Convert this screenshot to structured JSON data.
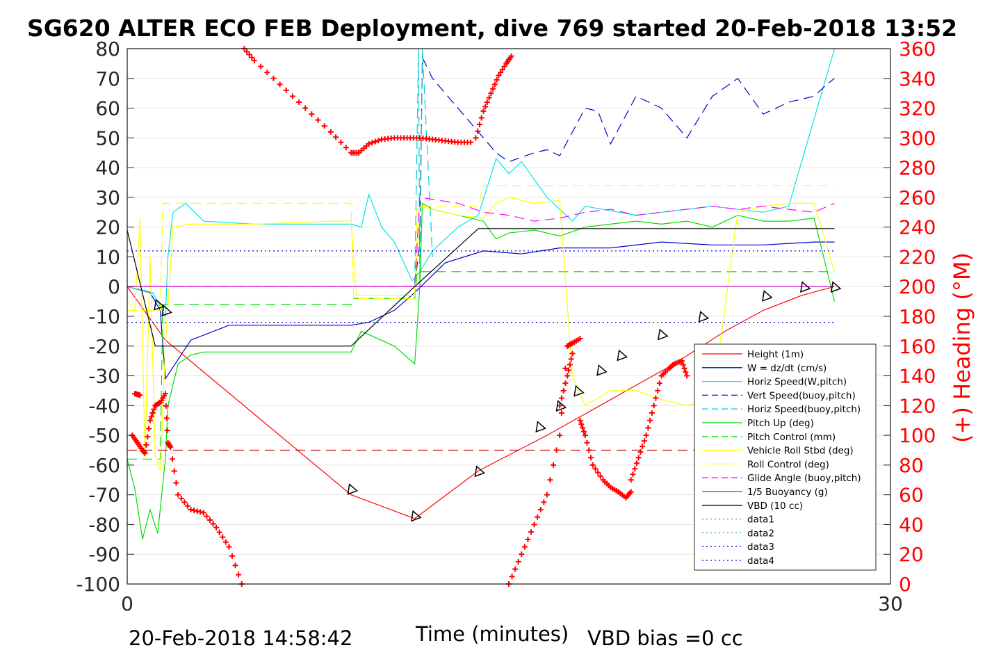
{
  "chart_data": {
    "type": "line",
    "title": "SG620 ALTER ECO FEB Deployment, dive 769 started 20-Feb-2018 13:52",
    "xlabel": "Time (minutes)",
    "ylabel": "",
    "y2label": "(+) Heading (°M)",
    "xlim": [
      0,
      30
    ],
    "ylim": [
      -100,
      80
    ],
    "y2lim": [
      0,
      360
    ],
    "x_ticks": [
      "0",
      "30"
    ],
    "y_ticks": [
      "80",
      "70",
      "60",
      "50",
      "40",
      "30",
      "20",
      "10",
      "0",
      "-10",
      "-20",
      "-30",
      "-40",
      "-50",
      "-60",
      "-70",
      "-80",
      "-90",
      "-100"
    ],
    "y2_ticks": [
      "360",
      "340",
      "320",
      "300",
      "280",
      "260",
      "240",
      "220",
      "200",
      "180",
      "160",
      "140",
      "120",
      "100",
      "80",
      "60",
      "40",
      "20",
      "0"
    ],
    "grid": true,
    "legend_position": "lower-right",
    "footer_left": "20-Feb-2018 14:58:42",
    "footer_right": "VBD bias =0 cc",
    "series": [
      {
        "name": "Height (1m)",
        "color": "#ff0000",
        "style": "solid",
        "x": [
          0,
          1.5,
          8.8,
          11.3,
          13.8,
          16.5,
          19,
          21.5,
          23.5,
          25,
          26.5,
          27.8
        ],
        "y": [
          0,
          -18,
          -70,
          -78,
          -62,
          -50,
          -38,
          -26,
          -15,
          -8,
          -3,
          0
        ]
      },
      {
        "name": "W = dz/dt (cm/s)",
        "color": "#0000cc",
        "style": "solid",
        "x": [
          0,
          0.9,
          1.3,
          1.5,
          2.5,
          4,
          6,
          8,
          8.8,
          9.5,
          10.5,
          11.3,
          12.5,
          14,
          15.5,
          17,
          19,
          21,
          23,
          25,
          27,
          27.8
        ],
        "y": [
          0,
          -2,
          -8,
          -31,
          -18,
          -13,
          -13,
          -13,
          -13,
          -12,
          -8,
          -2,
          8,
          12,
          11,
          13,
          13,
          15,
          14,
          14,
          15,
          15
        ]
      },
      {
        "name": "Horiz Speed(W,pitch)",
        "color": "#00e5e5",
        "style": "solid",
        "x": [
          0,
          1,
          1.5,
          1.6,
          1.8,
          2.3,
          3,
          5,
          7,
          8.8,
          9.2,
          9.5,
          10,
          10.5,
          11.2,
          11.5,
          12,
          13,
          13.8,
          14.5,
          15,
          15.5,
          16.5,
          17.5,
          18,
          20,
          21,
          23,
          25,
          26,
          27.8
        ],
        "y": [
          0,
          -2,
          -10,
          10,
          25,
          28,
          22,
          21,
          21,
          21,
          20,
          31,
          20,
          15,
          2,
          5,
          12,
          20,
          24,
          43,
          38,
          42,
          30,
          22,
          27,
          24,
          25,
          27,
          25,
          27,
          80
        ]
      },
      {
        "name": "Vert Speed(buoy,pitch)",
        "color": "#0000cc",
        "style": "dashed",
        "x": [
          11.3,
          11.5,
          11.6,
          12,
          13,
          14,
          14.5,
          15,
          16,
          16.5,
          17,
          18,
          18.5,
          19,
          20,
          21,
          22,
          23,
          24,
          25,
          26,
          27,
          27.5,
          27.8
        ],
        "y": [
          0,
          15,
          77,
          70,
          60,
          50,
          45,
          42,
          45,
          46,
          44,
          60,
          59,
          48,
          64,
          60,
          50,
          64,
          70,
          58,
          62,
          64,
          68,
          70
        ]
      },
      {
        "name": "Horiz Speed(buoy,pitch)",
        "color": "#00cccc",
        "style": "dashed",
        "x": [
          11.3,
          11.45,
          11.5,
          11.6,
          12
        ],
        "y": [
          0,
          80,
          0,
          80,
          10
        ]
      },
      {
        "name": "Pitch Up (deg)",
        "color": "#00dd00",
        "style": "solid",
        "x": [
          0,
          0.3,
          0.6,
          0.9,
          1.2,
          1.5,
          1.6,
          2,
          2.5,
          3,
          5,
          8,
          8.8,
          9.2,
          10.5,
          11.3,
          11.5,
          11.6,
          12,
          13,
          14,
          14.5,
          15,
          16,
          17,
          18,
          19,
          20,
          21,
          22,
          23,
          24,
          25,
          26,
          27,
          27.8
        ],
        "y": [
          -58,
          -68,
          -85,
          -75,
          -83,
          -58,
          -40,
          -26,
          -23,
          -22,
          -22,
          -22,
          -22,
          -15,
          -20,
          -26,
          0,
          28,
          26,
          24,
          22,
          16,
          18,
          19,
          17,
          20,
          21,
          22,
          21,
          22,
          20,
          24,
          22,
          22,
          23,
          -5
        ]
      },
      {
        "name": "Pitch Control (mm)",
        "color": "#00dd00",
        "style": "dashed",
        "x": [
          0,
          1.3,
          1.4,
          8.8,
          8.9,
          11.3,
          11.4,
          27.8
        ],
        "y": [
          -58,
          -58,
          -6,
          -6,
          -4,
          -4,
          5,
          5
        ]
      },
      {
        "name": "Vehicle Roll Stbd (deg)",
        "color": "#ffff00",
        "style": "solid",
        "x": [
          0,
          0.3,
          0.5,
          0.7,
          0.9,
          1.1,
          1.3,
          1.5,
          1.8,
          2.5,
          5,
          8,
          8.8,
          9,
          11.3,
          11.5,
          12,
          13,
          14,
          14.5,
          15,
          16,
          17,
          17.5,
          18,
          19,
          20,
          21,
          22,
          23,
          24,
          25,
          26,
          27,
          27.8
        ],
        "y": [
          -5,
          -8,
          23,
          -58,
          10,
          -57,
          -62,
          -20,
          20,
          21,
          21,
          22,
          22,
          -3,
          -3,
          27,
          26,
          24,
          23,
          28,
          30,
          28,
          29,
          -30,
          -40,
          -35,
          -35,
          -38,
          -40,
          -38,
          25,
          27,
          28,
          28,
          5
        ]
      },
      {
        "name": "Roll Control (deg)",
        "color": "#ffff00",
        "style": "dashed",
        "x": [
          0,
          1.3,
          1.4,
          8.8,
          8.9,
          11.3,
          11.4,
          13.8,
          14,
          27.8
        ],
        "y": [
          -8,
          -8,
          28,
          28,
          -4,
          -4,
          27,
          27,
          34,
          34
        ]
      },
      {
        "name": "Glide Angle (buoy,pitch)",
        "color": "#ff00ff",
        "style": "dashed",
        "x": [
          0,
          11.3,
          11.5,
          13,
          14,
          15,
          16,
          17,
          18,
          19,
          20,
          21,
          22,
          23,
          24,
          25,
          26,
          27,
          27.8
        ],
        "y": [
          0,
          0,
          30,
          28,
          25,
          24,
          22,
          23,
          25,
          26,
          24,
          25,
          26,
          27,
          26,
          27,
          26,
          25,
          28
        ]
      },
      {
        "name": "1/5 Buoyancy (g)",
        "color": "#cc00cc",
        "style": "solid",
        "x": [
          0,
          27.8
        ],
        "y": [
          0,
          0
        ]
      },
      {
        "name": "VBD (10 cc)",
        "color": "#000000",
        "style": "solid",
        "x": [
          0,
          1.1,
          8.8,
          11.3,
          13.8,
          27.8
        ],
        "y": [
          19,
          -20,
          -20,
          0,
          19.5,
          19.5
        ]
      },
      {
        "name": "data1",
        "color": "#00cc00",
        "style": "dotted",
        "x": [],
        "y": []
      },
      {
        "name": "data2",
        "color": "#00cc00",
        "style": "dotted",
        "x": [],
        "y": []
      },
      {
        "name": "data3",
        "color": "#0000cc",
        "style": "dotted",
        "x": [
          0,
          27.8
        ],
        "y": [
          12,
          12
        ]
      },
      {
        "name": "data4",
        "color": "#0000cc",
        "style": "dotted",
        "x": [
          0,
          27.8
        ],
        "y": [
          -12,
          -12
        ]
      },
      {
        "name": "",
        "color": "#cc0000",
        "style": "dashed",
        "x": [
          0,
          27.8
        ],
        "y": [
          -55,
          -55
        ]
      }
    ],
    "heading_series": {
      "color": "#ff0000",
      "marker": "+",
      "axis": "right",
      "segments": [
        {
          "x": [
            4.6,
            5,
            6,
            7,
            8,
            8.8,
            9.1
          ],
          "y": [
            360,
            352,
            336,
            320,
            304,
            290,
            290
          ]
        },
        {
          "x": [
            9.1,
            9.5,
            10,
            10.5,
            11,
            11.5,
            12,
            12.5,
            13,
            13.5
          ],
          "y": [
            290,
            296,
            299,
            300,
            300,
            300,
            299,
            298,
            297,
            297
          ]
        },
        {
          "x": [
            13.7,
            14,
            14.3,
            14.6,
            14.9,
            15.1
          ],
          "y": [
            300,
            318,
            330,
            342,
            350,
            355
          ]
        },
        {
          "x": [
            0.2,
            0.4,
            0.6,
            0.7,
            0.9,
            1.1,
            1.3,
            1.5,
            1.6,
            1.7,
            2,
            2.5,
            3,
            3.5,
            4,
            4.5
          ],
          "y": [
            100,
            95,
            90,
            88,
            110,
            120,
            122,
            128,
            95,
            92,
            60,
            50,
            48,
            38,
            25,
            0
          ]
        },
        {
          "x": [
            0.3,
            0.5
          ],
          "y": [
            128,
            127
          ]
        },
        {
          "x": [
            15,
            15.5,
            16,
            16.5,
            17,
            17.3
          ],
          "y": [
            0,
            20,
            40,
            60,
            100,
            160
          ]
        },
        {
          "x": [
            17.3,
            17.5,
            17.8
          ],
          "y": [
            160,
            162,
            165
          ]
        },
        {
          "x": [
            17,
            17.3,
            17.5
          ],
          "y": [
            120,
            140,
            155
          ]
        },
        {
          "x": [
            17.8,
            18,
            18.3,
            18.7,
            19,
            19.3,
            19.6,
            19.8
          ],
          "y": [
            110,
            100,
            80,
            70,
            65,
            62,
            58,
            62
          ]
        },
        {
          "x": [
            19.8,
            20.1,
            20.4,
            20.7,
            21,
            21.3,
            21.5,
            21.8,
            22
          ],
          "y": [
            70,
            85,
            100,
            120,
            140,
            145,
            148,
            150,
            140
          ]
        },
        {
          "x": [
            22.5,
            22.8,
            23,
            23.5,
            24,
            24.5,
            25,
            25.5,
            26,
            26.5,
            27,
            27.5,
            27.8
          ],
          "y": [
            120,
            90,
            80,
            70,
            60,
            55,
            50,
            45,
            60,
            70,
            72,
            72,
            75
          ]
        }
      ]
    },
    "markers": {
      "shape": "triangle",
      "color": "#000000",
      "x": [
        1.2,
        1.5,
        8.8,
        11.3,
        13.8,
        16.2,
        17,
        17.7,
        18.6,
        19.4,
        21,
        22.6,
        25.1,
        26.6,
        27.8
      ],
      "y": [
        -6,
        -8,
        -68,
        -77,
        -62,
        -47,
        -40,
        -35,
        -28,
        -23,
        -16,
        -10,
        -3,
        0,
        0
      ]
    }
  }
}
